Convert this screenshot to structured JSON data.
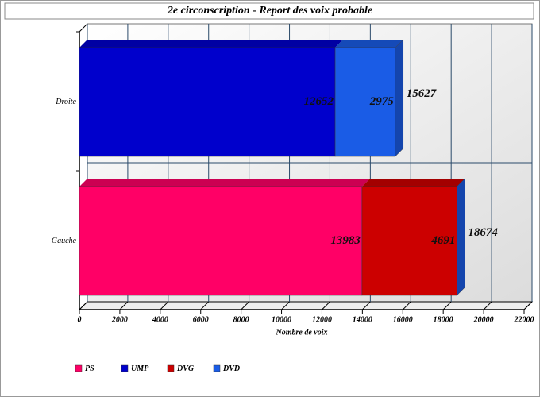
{
  "chart_data": {
    "type": "stacked-bar-3d",
    "orientation": "horizontal",
    "title": "2e circonscription - Report des voix probable",
    "x_label": "Nombre de voix",
    "categories": [
      "Droite",
      "Gauche"
    ],
    "series": [
      {
        "name": "PS",
        "color": "#ff0066",
        "values": [
          null,
          13983
        ]
      },
      {
        "name": "UMP",
        "color": "#0000cc",
        "values": [
          12652,
          null
        ]
      },
      {
        "name": "DVG",
        "color": "#cc0000",
        "values": [
          null,
          4691
        ]
      },
      {
        "name": "DVD",
        "color": "#1a5ce6",
        "values": [
          2975,
          null
        ]
      }
    ],
    "totals": [
      15627,
      18674
    ],
    "xlim": [
      0,
      22000
    ],
    "xticks": [
      0,
      2000,
      4000,
      6000,
      8000,
      10000,
      12000,
      14000,
      16000,
      18000,
      20000,
      22000
    ],
    "grid": true,
    "legend": "bottom-left"
  }
}
